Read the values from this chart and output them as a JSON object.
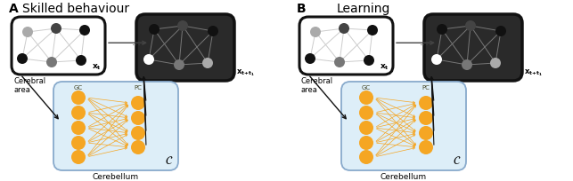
{
  "title_A": "Skilled behaviour",
  "title_B": "Learning",
  "label_A": "A",
  "label_B": "B",
  "cerebral_area_label": "Cerebral\narea",
  "cerebellum_label": "Cerebellum",
  "GC_label": "GC",
  "PC_label": "PC",
  "orange": "#F5A623",
  "light_blue_bg": "#ddeef8",
  "light_blue_edge": "#88aacc",
  "black": "#111111",
  "dark_gray": "#444444",
  "mid_gray": "#777777",
  "light_gray": "#aaaaaa",
  "very_light_gray": "#cccccc",
  "white": "#ffffff",
  "figsize": [
    6.43,
    2.05
  ],
  "dpi": 100,
  "panel_A_ox": 5,
  "panel_B_ox": 328
}
